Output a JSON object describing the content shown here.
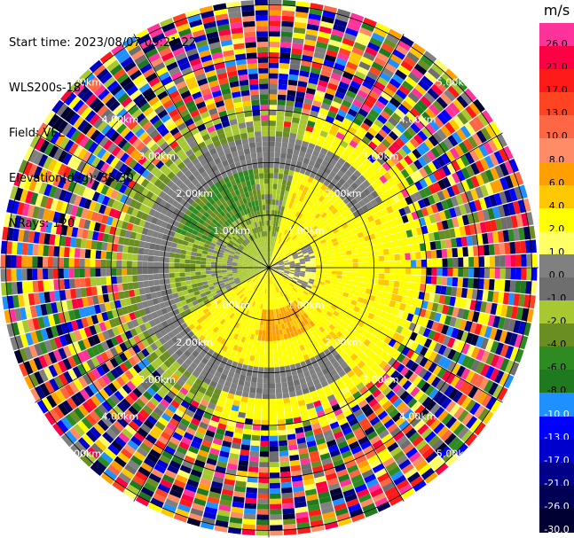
{
  "info": {
    "start_time": "Start time: 2023/08/07 09:21:22",
    "instrument": "WLS200s-181",
    "field": "Field: VEL",
    "elevation": "Elevation(deg): 35.30",
    "nrays": "NRays: 120"
  },
  "colorbar": {
    "unit": "m/s",
    "labels": [
      "26.0",
      "21.0",
      "17.0",
      "13.0",
      "10.0",
      "8.0",
      "6.0",
      "4.0",
      "2.0",
      "1.0",
      "0.0",
      "-1.0",
      "-2.0",
      "-4.0",
      "-6.0",
      "-8.0",
      "-10.0",
      "-13.0",
      "-17.0",
      "-21.0",
      "-26.0",
      "-30.0"
    ],
    "colors": [
      "#ff3399",
      "#ff0044",
      "#ff1a1a",
      "#ff4422",
      "#ff6644",
      "#ff8c66",
      "#ffa000",
      "#ffc800",
      "#ffff00",
      "#ffff66",
      "#808080",
      "#6e6e6e",
      "#a8c832",
      "#6b8e23",
      "#2e8b22",
      "#1f7a1f",
      "#1e90ff",
      "#0000ff",
      "#0000cd",
      "#000088",
      "#000055",
      "#000033"
    ],
    "label_colors": [
      "#000000",
      "#000000",
      "#000000",
      "#000000",
      "#000000",
      "#000000",
      "#000000",
      "#000000",
      "#000000",
      "#000000",
      "#000000",
      "#000000",
      "#000000",
      "#000000",
      "#000000",
      "#000000",
      "#ffffff",
      "#ffffff",
      "#ffffff",
      "#ffffff",
      "#ffffff",
      "#ffffff"
    ]
  },
  "chart_data": {
    "type": "heatmap",
    "projection": "polar (PPI)",
    "field": "VEL",
    "units": "m/s",
    "n_rays": 120,
    "range_ring_labels": [
      "1.00km",
      "2.00km",
      "3.00km",
      "4.00km",
      "5.00km"
    ],
    "ring_ranges_km": [
      1,
      2,
      3,
      4,
      5
    ],
    "max_range_km": 5.1,
    "spoke_angles_deg": [
      0,
      30,
      60,
      90,
      120,
      150,
      180,
      210,
      240,
      270,
      300,
      330
    ],
    "zones": [
      {
        "description": "yellow core",
        "value_range": [
          1,
          4
        ],
        "range_km": [
          0,
          2.7
        ],
        "azimuth_deg": [
          20,
          200
        ]
      },
      {
        "description": "orange band",
        "value_range": [
          4,
          6
        ],
        "range_km": [
          0.8,
          1.4
        ],
        "azimuth_deg": [
          140,
          190
        ]
      },
      {
        "description": "grey ring",
        "value_range": [
          -1,
          1
        ],
        "range_km": [
          1.9,
          2.5
        ]
      },
      {
        "description": "green area",
        "value_range": [
          -8,
          -2
        ],
        "range_km": [
          0.5,
          2.6
        ],
        "azimuth_deg": [
          240,
          360
        ]
      },
      {
        "description": "noise",
        "value_range": [
          -30,
          26
        ],
        "range_km": [
          2.6,
          5.1
        ]
      }
    ]
  }
}
